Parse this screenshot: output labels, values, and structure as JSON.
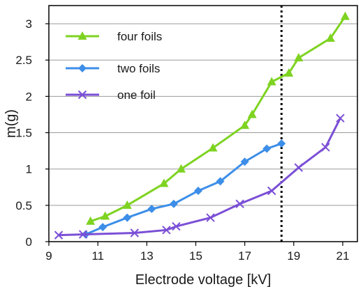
{
  "chart_data": {
    "type": "line",
    "title": "",
    "xlabel": "Electrode voltage [kV]",
    "ylabel": "m(g)",
    "xlim": [
      9,
      21.6
    ],
    "ylim": [
      0,
      3.25
    ],
    "x_ticks": [
      9,
      11,
      13,
      15,
      17,
      19,
      21
    ],
    "x_tick_labels": [
      "9",
      "11",
      "13",
      "15",
      "17",
      "19",
      "21"
    ],
    "y_ticks": [
      0,
      0.5,
      1,
      1.5,
      2,
      2.5,
      3
    ],
    "y_tick_labels": [
      "0",
      "0.5",
      "1",
      "1.5",
      "2",
      "2.5",
      "3"
    ],
    "grid": "horizontal",
    "legend_position": "top-left",
    "reference_line": {
      "x": 18.5,
      "style": "dotted"
    },
    "series": [
      {
        "name": "four foils",
        "color": "#7ed321",
        "marker": "triangle",
        "x": [
          10.7,
          11.3,
          12.2,
          13.7,
          14.4,
          15.7,
          17.0,
          17.3,
          18.1,
          18.8,
          19.2,
          20.5,
          21.1
        ],
        "y": [
          0.28,
          0.35,
          0.5,
          0.8,
          1.0,
          1.29,
          1.6,
          1.75,
          2.2,
          2.32,
          2.53,
          2.8,
          3.1
        ]
      },
      {
        "name": "two foils",
        "color": "#3c8ee8",
        "marker": "diamond",
        "x": [
          10.5,
          11.2,
          12.2,
          13.2,
          14.1,
          15.1,
          16.0,
          17.0,
          17.9,
          18.5
        ],
        "y": [
          0.1,
          0.2,
          0.33,
          0.45,
          0.52,
          0.7,
          0.83,
          1.1,
          1.28,
          1.35
        ]
      },
      {
        "name": "one foil",
        "color": "#7b4fd6",
        "marker": "x",
        "x": [
          9.4,
          10.4,
          12.5,
          13.8,
          14.2,
          15.6,
          16.8,
          18.1,
          19.2,
          20.3,
          20.9
        ],
        "y": [
          0.09,
          0.1,
          0.12,
          0.16,
          0.21,
          0.33,
          0.52,
          0.7,
          1.02,
          1.3,
          1.7
        ]
      }
    ]
  }
}
